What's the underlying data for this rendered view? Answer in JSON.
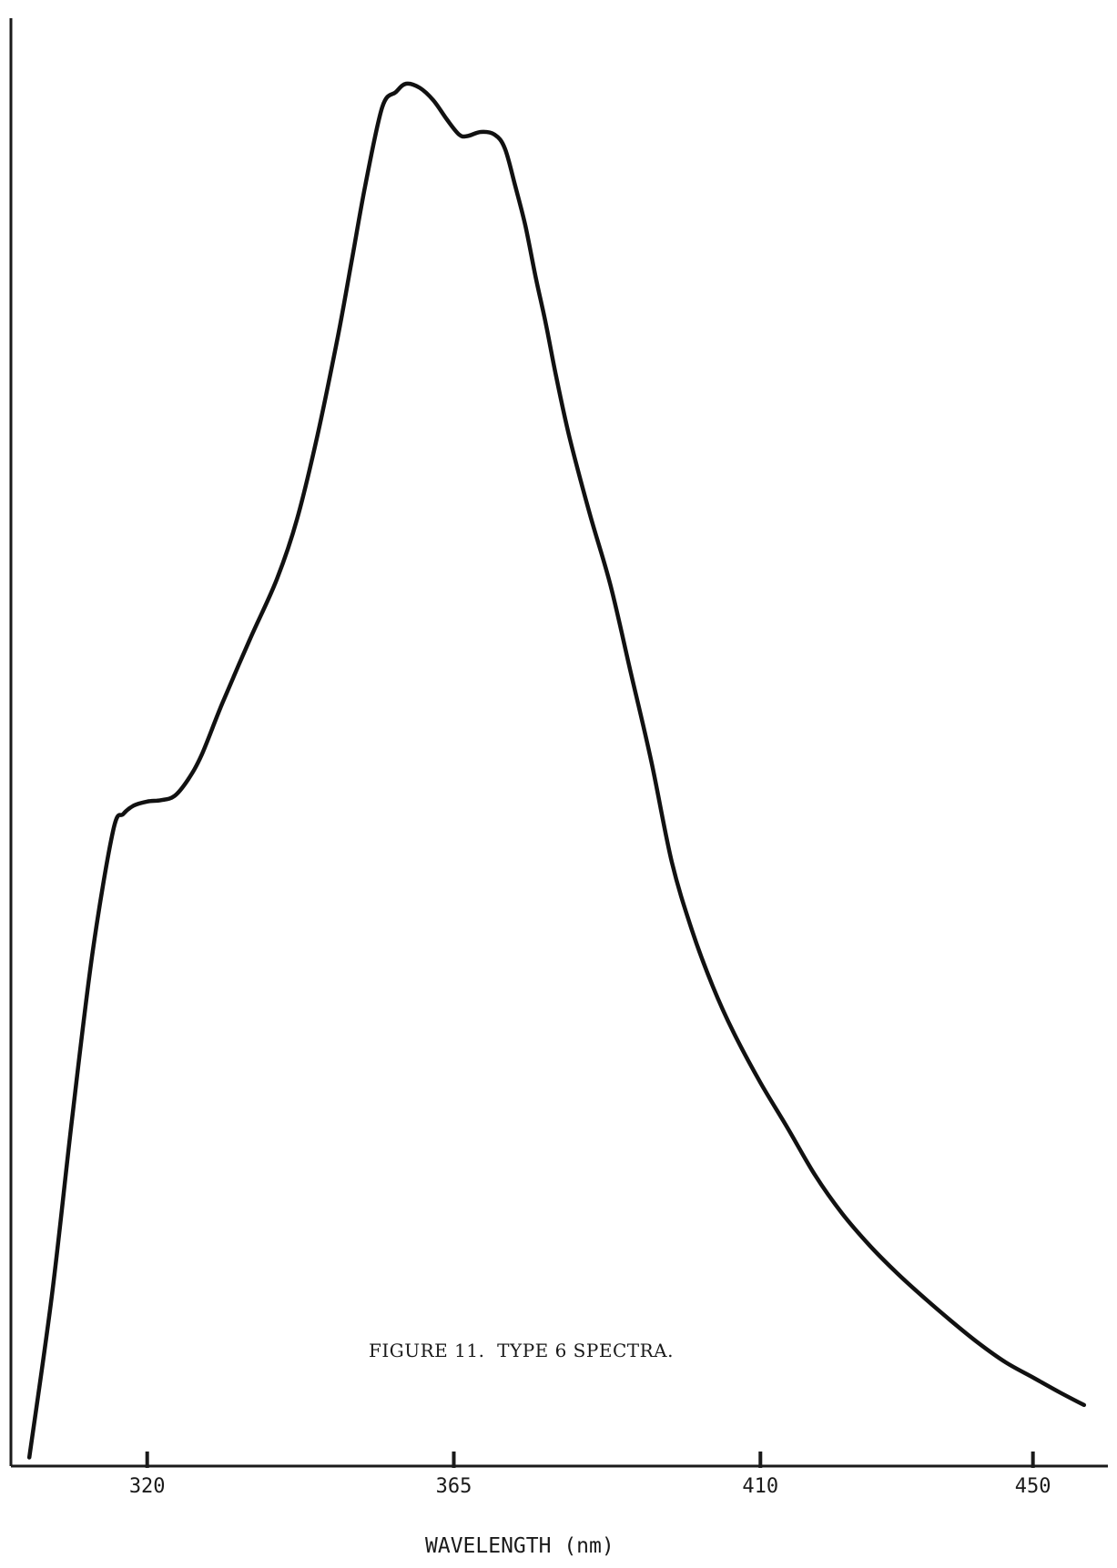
{
  "chart_data": {
    "type": "line",
    "title": "FIGURE 11.  TYPE 6 SPECTRA.",
    "xlabel": "WAVELENGTH (nm)",
    "ylabel": "",
    "x_ticks": [
      "320",
      "365",
      "410",
      "450"
    ],
    "x_tick_values": [
      320,
      365,
      410,
      450
    ],
    "xlim": [
      300,
      461
    ],
    "ylim": [
      0,
      100
    ],
    "grid": false,
    "legend": "none",
    "series": [
      {
        "x": [
          302.7,
          306,
          309,
          312,
          315,
          316.5,
          318,
          320,
          322,
          324,
          326,
          328,
          331,
          335,
          339,
          342,
          345,
          348,
          350,
          352,
          354.5,
          356.5,
          358,
          360,
          362,
          364,
          365.8,
          367,
          369,
          371,
          372.5,
          374,
          375.5,
          377,
          378.5,
          380,
          382,
          385,
          388,
          391,
          394,
          397,
          400,
          403,
          406,
          410,
          414,
          418,
          422,
          426,
          430,
          434,
          438,
          442,
          446,
          450,
          454,
          457.5
        ],
        "y": [
          0.3,
          12,
          25,
          37,
          45.8,
          47,
          47.6,
          47.9,
          48,
          48.3,
          49.5,
          51.3,
          55,
          59.6,
          64,
          68.4,
          74.5,
          81.7,
          87.1,
          92.6,
          98.3,
          99.4,
          100,
          99.7,
          98.8,
          97.4,
          96.3,
          96.2,
          96.5,
          96.3,
          95.3,
          92.6,
          89.7,
          86,
          82.6,
          78.8,
          74.3,
          68.7,
          63.6,
          57.2,
          50.8,
          43.5,
          38.5,
          34.5,
          31.2,
          27.5,
          24.2,
          20.8,
          18,
          15.7,
          13.7,
          11.9,
          10.2,
          8.6,
          7.2,
          6.1,
          5,
          4.1
        ]
      }
    ]
  }
}
